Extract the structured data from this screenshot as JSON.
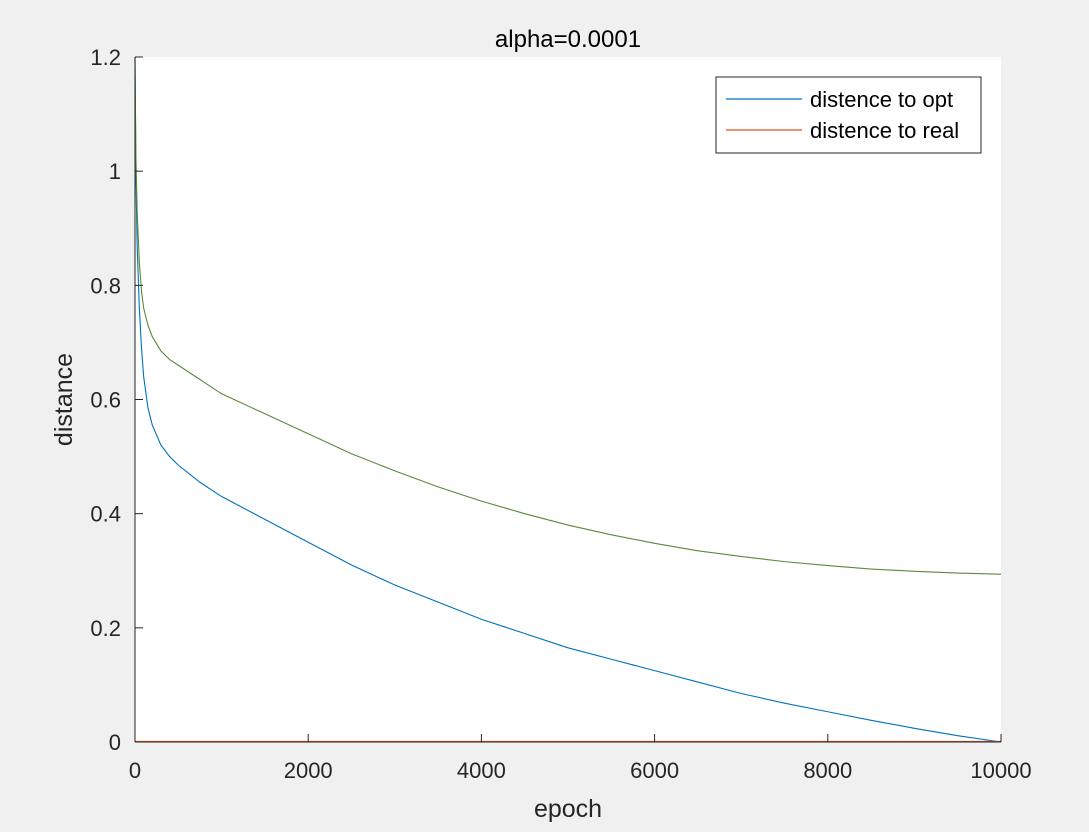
{
  "chart_data": {
    "type": "line",
    "title": "alpha=0.0001",
    "xlabel": "epoch",
    "ylabel": "distance",
    "xlim": [
      0,
      10000
    ],
    "ylim": [
      0,
      1.2
    ],
    "xticks": [
      0,
      2000,
      4000,
      6000,
      8000,
      10000
    ],
    "xtick_labels": [
      "0",
      "2000",
      "4000",
      "6000",
      "8000",
      "10000"
    ],
    "yticks": [
      0,
      0.2,
      0.4,
      0.6,
      0.8,
      1.0,
      1.2
    ],
    "ytick_labels": [
      "0",
      "0.2",
      "0.4",
      "0.6",
      "0.8",
      "1",
      "1.2"
    ],
    "grid": false,
    "legend_position": "top-right",
    "colors": {
      "figure_background": "#f0f0f0",
      "axes_background": "#ffffff",
      "axis_color": "#262626",
      "overlap_line": "#5a8a3a"
    },
    "legend": [
      {
        "label": "distence to opt",
        "color": "#0072bd"
      },
      {
        "label": "distence to real",
        "color": "#d95319"
      }
    ],
    "series": [
      {
        "name": "distence to opt",
        "color": "#0072bd",
        "x": [
          0,
          10,
          25,
          50,
          75,
          100,
          150,
          200,
          300,
          400,
          500,
          750,
          1000,
          1500,
          2000,
          2500,
          3000,
          3500,
          4000,
          4500,
          5000,
          5500,
          6000,
          6500,
          7000,
          7500,
          8000,
          8500,
          9000,
          9500,
          10000
        ],
        "y": [
          1.2,
          1.0,
          0.87,
          0.76,
          0.69,
          0.64,
          0.585,
          0.555,
          0.52,
          0.5,
          0.485,
          0.455,
          0.43,
          0.39,
          0.35,
          0.31,
          0.275,
          0.245,
          0.215,
          0.19,
          0.165,
          0.145,
          0.125,
          0.105,
          0.085,
          0.068,
          0.053,
          0.038,
          0.024,
          0.011,
          0.0
        ]
      },
      {
        "name": "distence to real",
        "color": "#d95319",
        "x": [
          0,
          500,
          1000,
          1500,
          2000,
          2500,
          3000,
          4000,
          5000,
          6000,
          7000,
          8000,
          9000,
          10000
        ],
        "y": [
          0.001,
          0.001,
          0.001,
          0.001,
          0.001,
          0.001,
          0.001,
          0.001,
          0.001,
          0.001,
          0.001,
          0.001,
          0.001,
          0.001
        ]
      },
      {
        "name": "",
        "color": "#5a8a3a",
        "x": [
          0,
          10,
          25,
          50,
          75,
          100,
          150,
          200,
          300,
          400,
          500,
          750,
          1000,
          1500,
          2000,
          2500,
          3000,
          3500,
          4000,
          4500,
          5000,
          5500,
          6000,
          6500,
          7000,
          7500,
          8000,
          8500,
          9000,
          9500,
          10000
        ],
        "y": [
          1.2,
          1.03,
          0.93,
          0.84,
          0.79,
          0.76,
          0.73,
          0.71,
          0.685,
          0.67,
          0.66,
          0.635,
          0.61,
          0.575,
          0.54,
          0.505,
          0.475,
          0.447,
          0.422,
          0.4,
          0.38,
          0.363,
          0.348,
          0.335,
          0.325,
          0.316,
          0.309,
          0.303,
          0.299,
          0.296,
          0.294
        ]
      }
    ]
  }
}
